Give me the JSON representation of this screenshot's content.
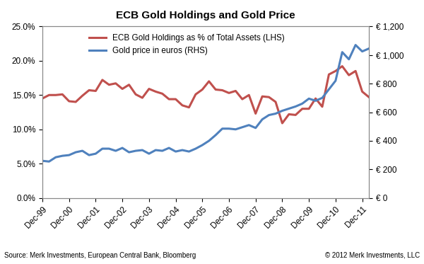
{
  "chart_data": {
    "type": "line",
    "title": "ECB Gold Holdings and Gold Price",
    "source": "Source: Merk Investments, European Central Bank, Bloomberg",
    "credit": "© 2012 Merk Investments, LLC",
    "categories": [
      "Dec-99",
      null,
      null,
      null,
      "Dec-00",
      null,
      null,
      null,
      "Dec-01",
      null,
      null,
      null,
      "Dec-02",
      null,
      null,
      null,
      "Dec-03",
      null,
      null,
      null,
      "Dec-04",
      null,
      null,
      null,
      "Dec-05",
      null,
      null,
      null,
      "Dec-06",
      null,
      null,
      null,
      "Dec-07",
      null,
      null,
      null,
      "Dec-08",
      null,
      null,
      null,
      "Dec-09",
      null,
      null,
      null,
      "Dec-10",
      null,
      null,
      null,
      "Dec-11",
      null
    ],
    "series": [
      {
        "name": "ECB Gold Holdings as % of Total Assets (LHS)",
        "color": "#c0504d",
        "axis": "y",
        "values": [
          14.5,
          15.0,
          15.0,
          15.1,
          14.1,
          14.0,
          14.9,
          15.7,
          15.6,
          17.2,
          16.5,
          16.7,
          15.9,
          16.5,
          15.1,
          14.6,
          15.9,
          15.5,
          15.2,
          14.4,
          14.4,
          13.5,
          13.2,
          15.1,
          15.8,
          17.0,
          15.8,
          15.7,
          15.3,
          15.6,
          14.4,
          15.0,
          12.3,
          14.8,
          14.7,
          14.0,
          10.9,
          12.2,
          12.1,
          13.0,
          13.0,
          14.5,
          13.3,
          18.0,
          18.5,
          19.2,
          17.9,
          18.5,
          15.5,
          14.7
        ]
      },
      {
        "name": "Gold price in euros (RHS)",
        "color": "#4f81bd",
        "axis": "y2",
        "values": [
          260,
          255,
          285,
          295,
          300,
          320,
          330,
          300,
          310,
          345,
          345,
          330,
          350,
          320,
          330,
          335,
          310,
          335,
          330,
          350,
          325,
          335,
          325,
          345,
          370,
          400,
          440,
          485,
          485,
          480,
          495,
          510,
          490,
          550,
          580,
          590,
          610,
          625,
          640,
          660,
          695,
          680,
          700,
          760,
          820,
          1020,
          970,
          1070,
          1025,
          1045
        ]
      }
    ],
    "ylim": [
      0,
      25
    ],
    "yticks": [
      {
        "value": 0,
        "label": "0.0%"
      },
      {
        "value": 5,
        "label": "5.0%"
      },
      {
        "value": 10,
        "label": "10.0%"
      },
      {
        "value": 15,
        "label": "15.0%"
      },
      {
        "value": 20,
        "label": "20.0%"
      },
      {
        "value": 25,
        "label": "25.0%"
      }
    ],
    "y2lim": [
      0,
      1200
    ],
    "y2ticks": [
      {
        "value": 0,
        "label": "€ 0"
      },
      {
        "value": 200,
        "label": "€ 200"
      },
      {
        "value": 400,
        "label": "€ 400"
      },
      {
        "value": 600,
        "label": "€ 600"
      },
      {
        "value": 800,
        "label": "€ 800"
      },
      {
        "value": 1000,
        "label": "€ 1,000"
      },
      {
        "value": 1200,
        "label": "€ 1,200"
      }
    ],
    "grid": false,
    "legend": "upper left"
  }
}
